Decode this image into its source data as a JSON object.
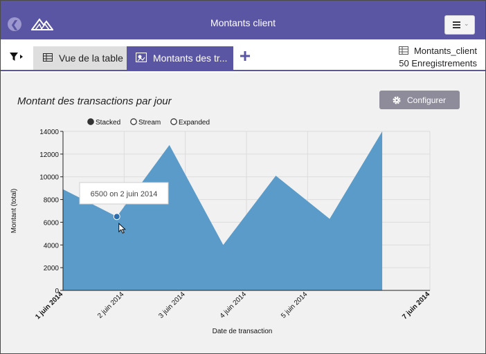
{
  "header": {
    "title": "Montants client",
    "back_icon": "back-arrow-icon",
    "logo_icon": "mountain-logo-icon",
    "menu_icon": "hamburger-menu-icon"
  },
  "tabbar": {
    "filter_icon": "filter-icon",
    "tabs": [
      {
        "label": "Vue de la table",
        "icon": "table-icon",
        "active": false
      },
      {
        "label": "Montants des tr...",
        "icon": "chart-icon",
        "active": true
      }
    ],
    "add_icon": "plus-icon",
    "dataset_name": "Montants_client",
    "record_count": "50 Enregistrements"
  },
  "colors": {
    "brand": "#5b56a3",
    "area": "#5a9bc9",
    "point": "#2c6fae",
    "configure_button": "#8e8b9b"
  },
  "panel": {
    "title": "Montant des transactions par jour",
    "configure_label": "Configurer",
    "configure_icon": "gear-icon"
  },
  "chart_data": {
    "type": "area",
    "modes": [
      {
        "label": "Stacked",
        "selected": true
      },
      {
        "label": "Stream",
        "selected": false
      },
      {
        "label": "Expanded",
        "selected": false
      }
    ],
    "xlabel": "Date de transaction",
    "ylabel": "Montant (total)",
    "ylim": [
      0,
      14000
    ],
    "y_ticks": [
      "0",
      "2000",
      "4000",
      "6000",
      "8000",
      "10000",
      "12000",
      "14000"
    ],
    "x_ticks": [
      {
        "label": "1 juin 2014",
        "x": 0,
        "bold": true
      },
      {
        "label": "2 juin 2014",
        "x": 1,
        "bold": false
      },
      {
        "label": "3 juin 2014",
        "x": 2,
        "bold": false
      },
      {
        "label": "4 juin 2014",
        "x": 3,
        "bold": false
      },
      {
        "label": "5 juin 2014",
        "x": 4,
        "bold": false
      },
      {
        "label": "7 juin 2014",
        "x": 6,
        "bold": true
      }
    ],
    "xlim": [
      0,
      6
    ],
    "series": [
      {
        "points": [
          {
            "x": 0,
            "y": 8900
          },
          {
            "x": 0.88,
            "y": 6500
          },
          {
            "x": 1.74,
            "y": 12800
          },
          {
            "x": 2.62,
            "y": 4000
          },
          {
            "x": 3.48,
            "y": 10100
          },
          {
            "x": 4.36,
            "y": 6300
          },
          {
            "x": 5.22,
            "y": 14000
          }
        ]
      }
    ],
    "highlight": {
      "x": 0.88,
      "y": 6500,
      "tooltip": "6500 on 2 juin 2014"
    },
    "grid": true
  }
}
